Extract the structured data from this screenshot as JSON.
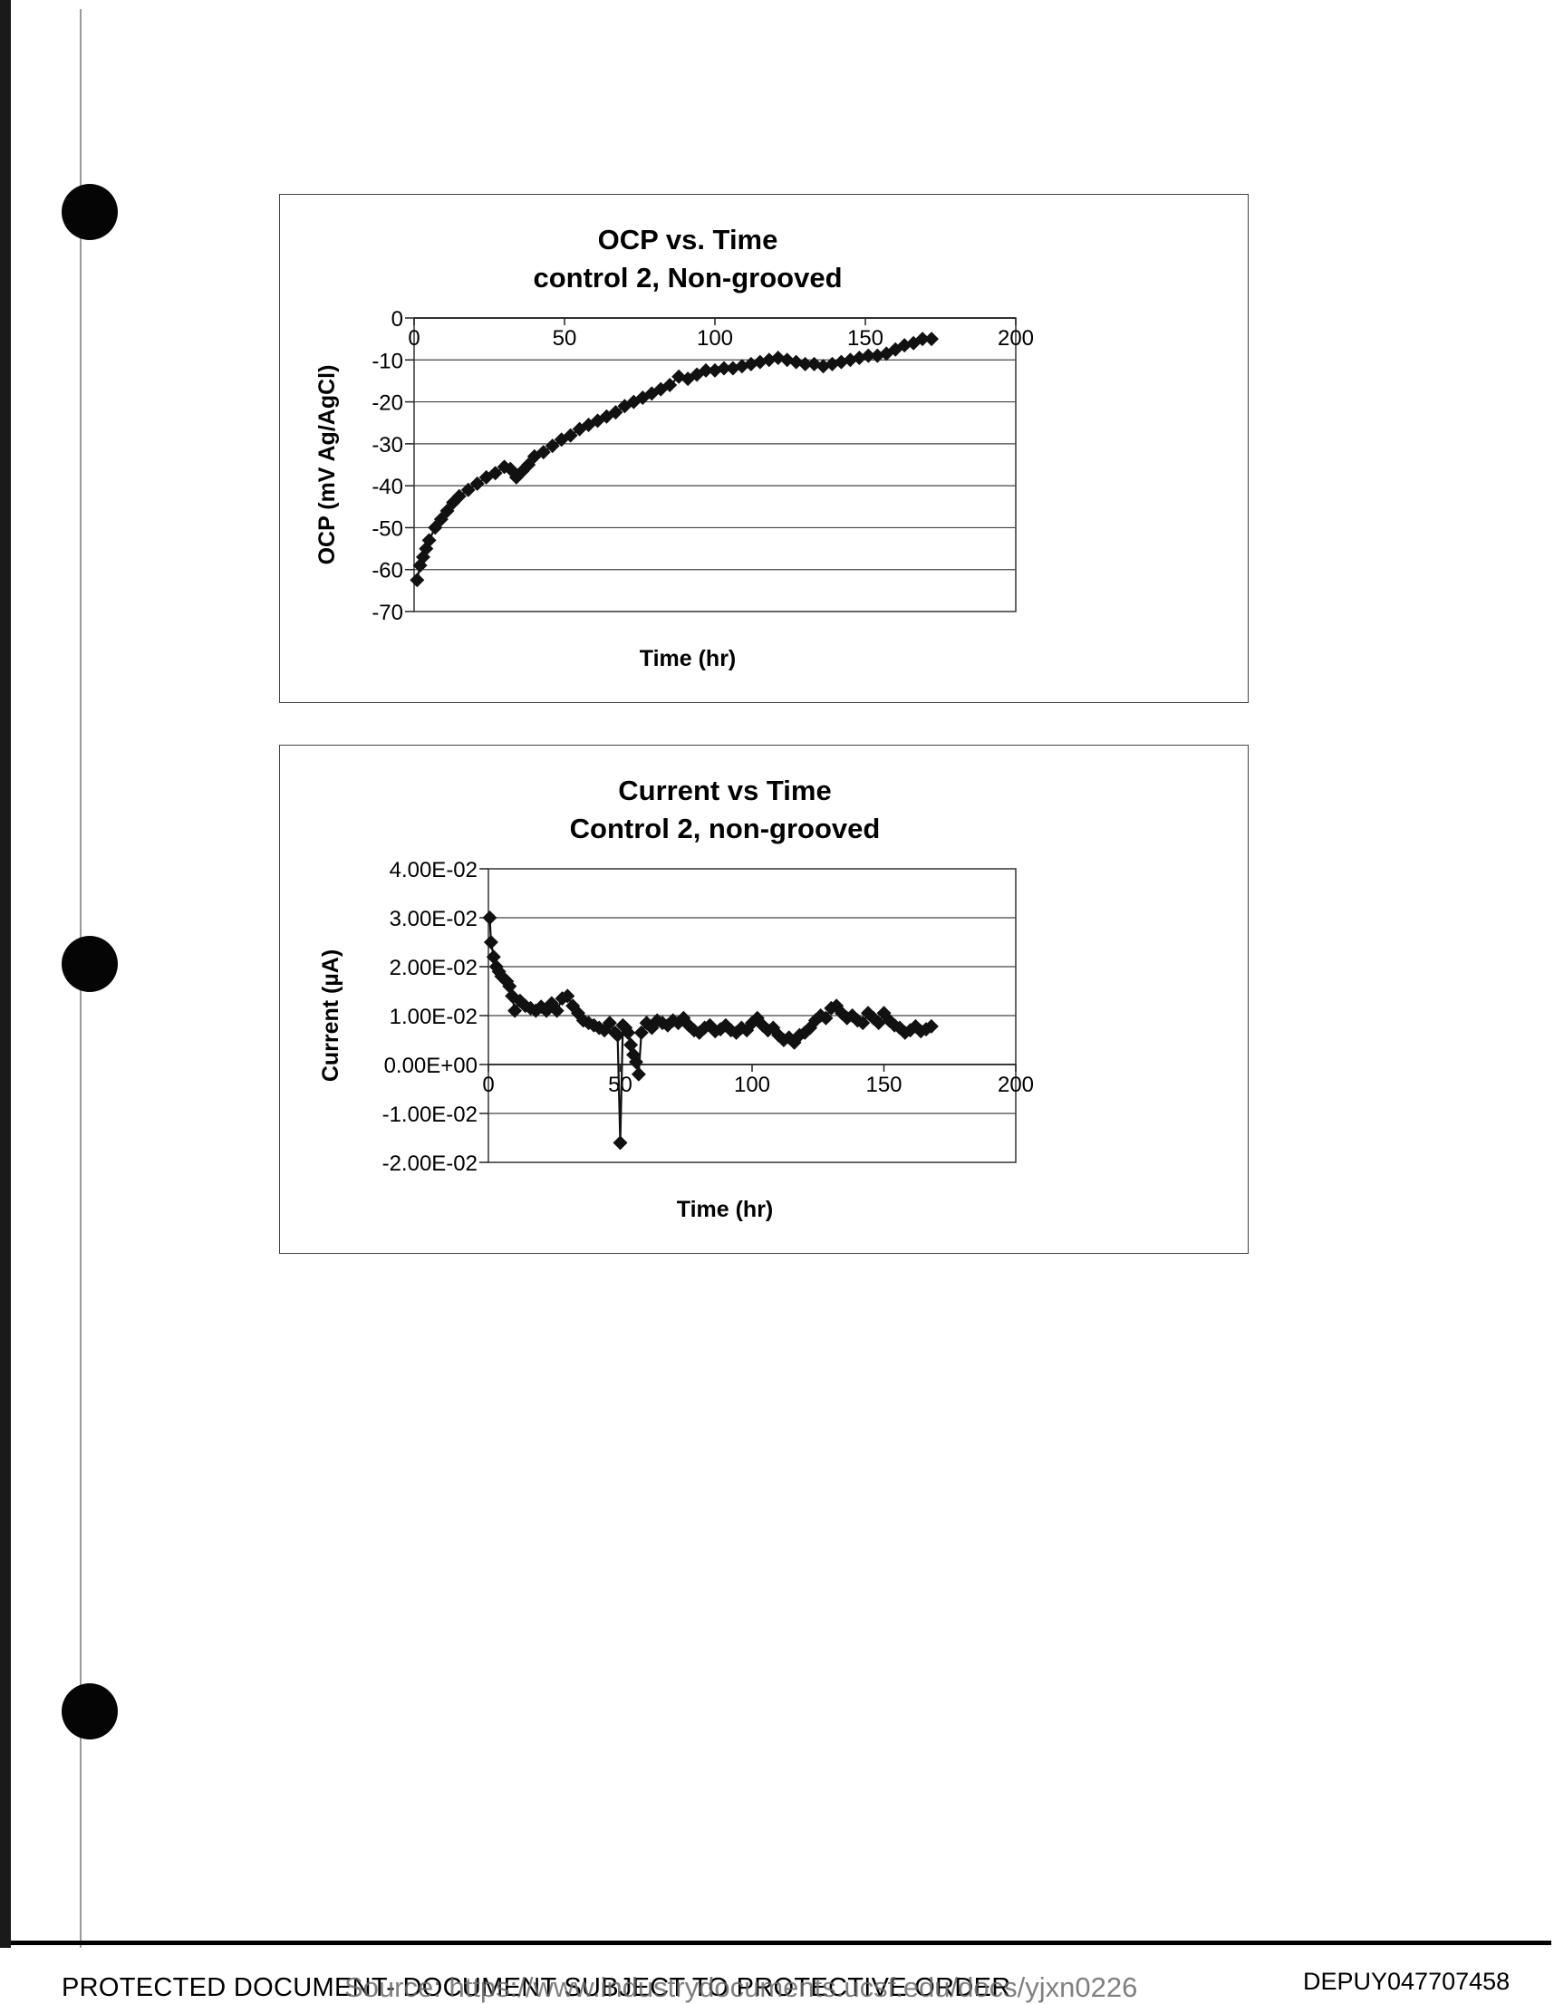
{
  "chart_data": [
    {
      "type": "scatter",
      "title": "OCP vs. Time",
      "subtitle": "control 2, Non-grooved",
      "xlabel": "Time (hr)",
      "ylabel": "OCP (mV Ag/AgCl)",
      "xlim": [
        0,
        200
      ],
      "ylim": [
        -70,
        0
      ],
      "xticks": [
        "0",
        "50",
        "100",
        "150",
        "200"
      ],
      "yticks": [
        "0",
        "-10",
        "-20",
        "-30",
        "-40",
        "-50",
        "-60",
        "-70"
      ],
      "x_axis_crosses_at": 0,
      "grid": "horizontal",
      "legend": "none",
      "marker": "diamond",
      "color": "#111111",
      "x": [
        1,
        2,
        3,
        4,
        5,
        7,
        9,
        11,
        13,
        15,
        18,
        21,
        24,
        27,
        30,
        32,
        34,
        36,
        38,
        40,
        43,
        46,
        49,
        52,
        55,
        58,
        61,
        64,
        67,
        70,
        73,
        76,
        79,
        82,
        85,
        88,
        91,
        94,
        97,
        100,
        103,
        106,
        109,
        112,
        115,
        118,
        121,
        124,
        127,
        130,
        133,
        136,
        139,
        142,
        145,
        148,
        151,
        154,
        157,
        160,
        163,
        166,
        169,
        172
      ],
      "y": [
        -62.5,
        -59,
        -57,
        -55,
        -53,
        -50,
        -48,
        -46,
        -44,
        -42.5,
        -41,
        -39.5,
        -38,
        -37,
        -35.5,
        -36,
        -38,
        -36.5,
        -35,
        -33,
        -32,
        -30.5,
        -29,
        -28,
        -26.5,
        -25.5,
        -24.5,
        -23.5,
        -22.5,
        -21,
        -20,
        -19,
        -18,
        -17,
        -16,
        -14,
        -14.5,
        -13.5,
        -12.5,
        -12.5,
        -12,
        -12,
        -11.5,
        -11,
        -10.5,
        -10,
        -9.5,
        -10,
        -10.5,
        -11,
        -11,
        -11.5,
        -11,
        -10.5,
        -10,
        -9.5,
        -9,
        -9,
        -8.5,
        -7.5,
        -6.5,
        -6,
        -5,
        -5
      ]
    },
    {
      "type": "scatter",
      "title": "Current vs Time",
      "subtitle": "Control 2, non-grooved",
      "xlabel": "Time (hr)",
      "ylabel": "Current (µA)",
      "xlim": [
        0,
        200
      ],
      "ylim": [
        -0.02,
        0.04
      ],
      "xticks": [
        "0",
        "50",
        "100",
        "150",
        "200"
      ],
      "yticks": [
        "4.00E-02",
        "3.00E-02",
        "2.00E-02",
        "1.00E-02",
        "0.00E+00",
        "-1.00E-02",
        "-2.00E-02"
      ],
      "x_axis_crosses_at": 0,
      "grid": "horizontal",
      "legend": "none",
      "marker": "diamond",
      "color": "#111111",
      "x": [
        0.5,
        1,
        2,
        3,
        4,
        5,
        6,
        7,
        8,
        9,
        10,
        12,
        14,
        16,
        18,
        20,
        22,
        24,
        26,
        28,
        30,
        32,
        34,
        36,
        38,
        40,
        42,
        44,
        46,
        48,
        49,
        50,
        51,
        52,
        53,
        54,
        55,
        56,
        57,
        58,
        60,
        62,
        64,
        66,
        68,
        70,
        72,
        74,
        76,
        78,
        80,
        82,
        84,
        86,
        88,
        90,
        92,
        94,
        96,
        98,
        100,
        102,
        104,
        106,
        108,
        110,
        112,
        114,
        116,
        118,
        120,
        122,
        124,
        126,
        128,
        130,
        132,
        134,
        136,
        138,
        140,
        142,
        144,
        146,
        148,
        150,
        152,
        154,
        156,
        158,
        160,
        162,
        164,
        166,
        168
      ],
      "y": [
        0.03,
        0.025,
        0.022,
        0.02,
        0.019,
        0.018,
        0.0175,
        0.017,
        0.016,
        0.014,
        0.011,
        0.013,
        0.012,
        0.0115,
        0.011,
        0.0118,
        0.011,
        0.0125,
        0.011,
        0.0135,
        0.014,
        0.012,
        0.0105,
        0.009,
        0.0085,
        0.008,
        0.0075,
        0.007,
        0.0085,
        0.0065,
        0.006,
        -0.016,
        0.008,
        0.0075,
        0.0065,
        0.004,
        0.002,
        0.0005,
        -0.002,
        0.0065,
        0.0085,
        0.0075,
        0.009,
        0.0085,
        0.008,
        0.009,
        0.0085,
        0.0095,
        0.008,
        0.007,
        0.0065,
        0.0075,
        0.008,
        0.0068,
        0.0072,
        0.008,
        0.007,
        0.0065,
        0.0075,
        0.007,
        0.0085,
        0.0095,
        0.008,
        0.007,
        0.0075,
        0.006,
        0.005,
        0.0055,
        0.0045,
        0.006,
        0.0065,
        0.0075,
        0.009,
        0.01,
        0.0095,
        0.0115,
        0.012,
        0.0105,
        0.0095,
        0.01,
        0.009,
        0.0085,
        0.0105,
        0.0095,
        0.0085,
        0.0105,
        0.009,
        0.008,
        0.0075,
        0.0065,
        0.007,
        0.0078,
        0.0068,
        0.0072,
        0.0078
      ]
    }
  ],
  "footer": {
    "left_text": "PROTECTED DOCUMENT- DOCUMENT SUBJECT TO PROTECTIVE ORDER",
    "source_text": "Source: https://www.industrydocuments.ucsf.edu/docs/yjxn0226",
    "right_text": "DEPUY047707458"
  }
}
